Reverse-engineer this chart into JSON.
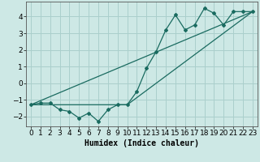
{
  "xlabel": "Humidex (Indice chaleur)",
  "background_color": "#cde8e5",
  "grid_color": "#aacfcc",
  "line_color": "#1a6b60",
  "xlim": [
    -0.5,
    23.5
  ],
  "ylim": [
    -2.6,
    4.9
  ],
  "yticks": [
    -2,
    -1,
    0,
    1,
    2,
    3,
    4
  ],
  "xticks": [
    0,
    1,
    2,
    3,
    4,
    5,
    6,
    7,
    8,
    9,
    10,
    11,
    12,
    13,
    14,
    15,
    16,
    17,
    18,
    19,
    20,
    21,
    22,
    23
  ],
  "series1_x": [
    0,
    1,
    2,
    3,
    4,
    5,
    6,
    7,
    8,
    9,
    10,
    11,
    12,
    13,
    14,
    15,
    16,
    17,
    18,
    19,
    20,
    21,
    22,
    23
  ],
  "series1_y": [
    -1.3,
    -1.2,
    -1.2,
    -1.6,
    -1.7,
    -2.1,
    -1.8,
    -2.3,
    -1.6,
    -1.3,
    -1.3,
    -0.5,
    0.9,
    1.9,
    3.2,
    4.1,
    3.2,
    3.5,
    4.5,
    4.2,
    3.5,
    4.3,
    4.3,
    4.3
  ],
  "series2_x": [
    0,
    23
  ],
  "series2_y": [
    -1.3,
    4.3
  ],
  "series3_x": [
    0,
    10,
    23
  ],
  "series3_y": [
    -1.3,
    -1.3,
    4.3
  ],
  "xlabel_fontsize": 7,
  "tick_fontsize": 6.5
}
